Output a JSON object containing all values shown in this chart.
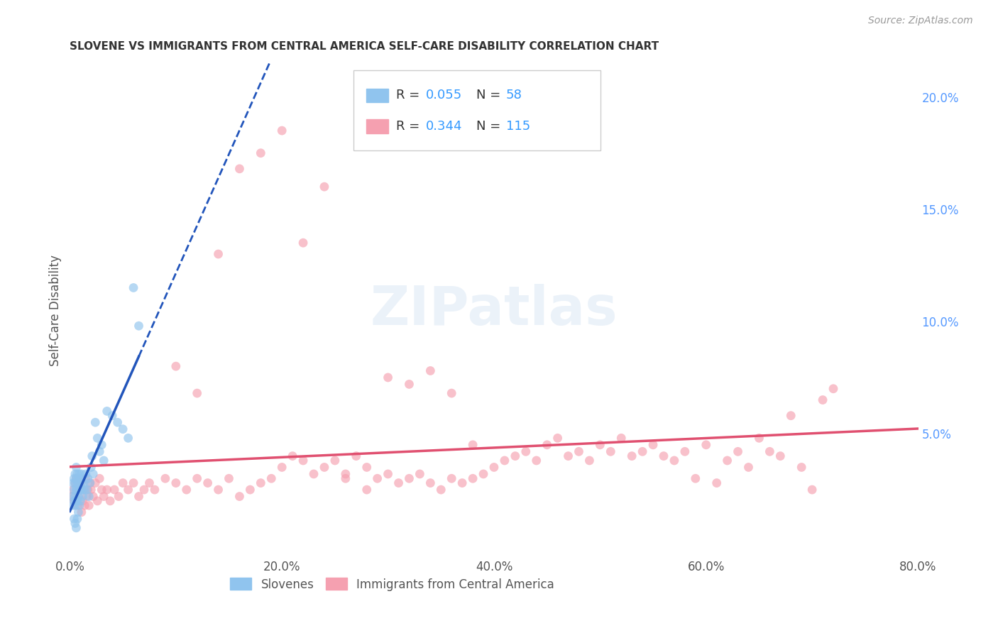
{
  "title": "SLOVENE VS IMMIGRANTS FROM CENTRAL AMERICA SELF-CARE DISABILITY CORRELATION CHART",
  "source": "Source: ZipAtlas.com",
  "ylabel": "Self-Care Disability",
  "xlim": [
    0.0,
    0.8
  ],
  "ylim": [
    -0.005,
    0.215
  ],
  "xticks": [
    0.0,
    0.2,
    0.4,
    0.6,
    0.8
  ],
  "xticklabels": [
    "0.0%",
    "20.0%",
    "40.0%",
    "60.0%",
    "80.0%"
  ],
  "yticks_right": [
    0.05,
    0.1,
    0.15,
    0.2
  ],
  "yticklabels_right": [
    "5.0%",
    "10.0%",
    "15.0%",
    "20.0%"
  ],
  "grid_color": "#cccccc",
  "bg_color": "#ffffff",
  "color_slovene": "#90c4ee",
  "color_immigrant": "#f5a0b0",
  "color_line_slovene": "#2255bb",
  "color_line_immigrant": "#e05070",
  "r1": "0.055",
  "n1": "58",
  "r2": "0.344",
  "n2": "115",
  "legend_label1": "Slovenes",
  "legend_label2": "Immigrants from Central America",
  "slovene_x": [
    0.002,
    0.003,
    0.003,
    0.004,
    0.004,
    0.004,
    0.005,
    0.005,
    0.005,
    0.005,
    0.006,
    0.006,
    0.006,
    0.006,
    0.007,
    0.007,
    0.007,
    0.007,
    0.008,
    0.008,
    0.008,
    0.009,
    0.009,
    0.009,
    0.01,
    0.01,
    0.01,
    0.011,
    0.011,
    0.012,
    0.012,
    0.013,
    0.014,
    0.015,
    0.016,
    0.017,
    0.018,
    0.019,
    0.02,
    0.021,
    0.022,
    0.024,
    0.026,
    0.028,
    0.03,
    0.032,
    0.035,
    0.04,
    0.045,
    0.05,
    0.055,
    0.06,
    0.065,
    0.004,
    0.005,
    0.006,
    0.007,
    0.008
  ],
  "slovene_y": [
    0.022,
    0.028,
    0.018,
    0.03,
    0.025,
    0.02,
    0.032,
    0.028,
    0.022,
    0.018,
    0.035,
    0.03,
    0.025,
    0.02,
    0.032,
    0.028,
    0.025,
    0.02,
    0.03,
    0.028,
    0.022,
    0.032,
    0.025,
    0.018,
    0.03,
    0.025,
    0.02,
    0.032,
    0.028,
    0.025,
    0.022,
    0.028,
    0.025,
    0.032,
    0.025,
    0.03,
    0.022,
    0.028,
    0.035,
    0.04,
    0.032,
    0.055,
    0.048,
    0.042,
    0.045,
    0.038,
    0.06,
    0.058,
    0.055,
    0.052,
    0.048,
    0.115,
    0.098,
    0.012,
    0.01,
    0.008,
    0.012,
    0.015
  ],
  "immigrant_x": [
    0.002,
    0.003,
    0.004,
    0.005,
    0.006,
    0.007,
    0.008,
    0.009,
    0.01,
    0.011,
    0.012,
    0.013,
    0.014,
    0.015,
    0.016,
    0.017,
    0.018,
    0.019,
    0.02,
    0.022,
    0.024,
    0.026,
    0.028,
    0.03,
    0.032,
    0.035,
    0.038,
    0.042,
    0.046,
    0.05,
    0.055,
    0.06,
    0.065,
    0.07,
    0.075,
    0.08,
    0.09,
    0.1,
    0.11,
    0.12,
    0.13,
    0.14,
    0.15,
    0.16,
    0.17,
    0.18,
    0.19,
    0.2,
    0.21,
    0.22,
    0.23,
    0.24,
    0.25,
    0.26,
    0.27,
    0.28,
    0.29,
    0.3,
    0.31,
    0.32,
    0.33,
    0.34,
    0.35,
    0.36,
    0.37,
    0.38,
    0.39,
    0.4,
    0.41,
    0.42,
    0.43,
    0.44,
    0.45,
    0.46,
    0.47,
    0.48,
    0.49,
    0.5,
    0.51,
    0.52,
    0.53,
    0.54,
    0.55,
    0.56,
    0.57,
    0.58,
    0.59,
    0.6,
    0.61,
    0.62,
    0.63,
    0.64,
    0.65,
    0.66,
    0.67,
    0.68,
    0.69,
    0.7,
    0.71,
    0.72,
    0.1,
    0.12,
    0.14,
    0.16,
    0.18,
    0.2,
    0.22,
    0.24,
    0.26,
    0.28,
    0.3,
    0.32,
    0.34,
    0.36,
    0.38
  ],
  "immigrant_y": [
    0.022,
    0.025,
    0.02,
    0.028,
    0.03,
    0.018,
    0.022,
    0.025,
    0.028,
    0.015,
    0.02,
    0.025,
    0.018,
    0.03,
    0.022,
    0.025,
    0.018,
    0.028,
    0.025,
    0.022,
    0.028,
    0.02,
    0.03,
    0.025,
    0.022,
    0.025,
    0.02,
    0.025,
    0.022,
    0.028,
    0.025,
    0.028,
    0.022,
    0.025,
    0.028,
    0.025,
    0.03,
    0.028,
    0.025,
    0.03,
    0.028,
    0.025,
    0.03,
    0.022,
    0.025,
    0.028,
    0.03,
    0.035,
    0.04,
    0.038,
    0.032,
    0.035,
    0.038,
    0.032,
    0.04,
    0.035,
    0.03,
    0.032,
    0.028,
    0.03,
    0.032,
    0.028,
    0.025,
    0.03,
    0.028,
    0.03,
    0.032,
    0.035,
    0.038,
    0.04,
    0.042,
    0.038,
    0.045,
    0.048,
    0.04,
    0.042,
    0.038,
    0.045,
    0.042,
    0.048,
    0.04,
    0.042,
    0.045,
    0.04,
    0.038,
    0.042,
    0.03,
    0.045,
    0.028,
    0.038,
    0.042,
    0.035,
    0.048,
    0.042,
    0.04,
    0.058,
    0.035,
    0.025,
    0.065,
    0.07,
    0.08,
    0.068,
    0.13,
    0.168,
    0.175,
    0.185,
    0.135,
    0.16,
    0.03,
    0.025,
    0.075,
    0.072,
    0.078,
    0.068,
    0.045
  ]
}
